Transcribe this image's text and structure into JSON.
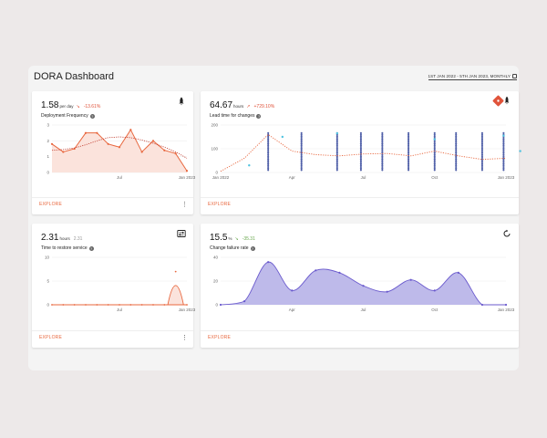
{
  "dashboard": {
    "title": "DORA Dashboard",
    "date_range": "1ST JAN 2022 - 5TH JAN 2023, MONTHLY"
  },
  "cards": {
    "deployment": {
      "value": "1.58",
      "unit": "per day",
      "delta": "-13.61%",
      "label": "Deployment Frequency",
      "explore": "EXPLORE",
      "icon": "rocket-icon"
    },
    "leadtime": {
      "value": "64.67",
      "unit": "hours",
      "delta": "+729.10%",
      "label": "Lead time for changes",
      "explore": "EXPLORE",
      "icon": "git-rocket-icon"
    },
    "restore": {
      "value": "2.31",
      "unit": "hours",
      "delta": "2.31",
      "label": "Time to restore service",
      "explore": "EXPLORE",
      "icon": "restore-icon"
    },
    "failure": {
      "value": "15.5",
      "unit": "%",
      "delta": "-35.31",
      "label": "Change failure rate",
      "explore": "EXPLORE",
      "icon": "refresh-icon"
    }
  },
  "colors": {
    "accent": "#e8673e",
    "purple": "#6a5acd",
    "purple_fill": "#b3aee6",
    "scatter": "#4f5fa8",
    "cyan": "#4fc3e0"
  },
  "chart_data": [
    {
      "type": "line",
      "name": "deployment-frequency",
      "ylim": [
        0,
        3
      ],
      "yticks": [
        "0",
        "1",
        "2",
        "3"
      ],
      "xticks": [
        {
          "label": "Jul",
          "x": 6
        },
        {
          "label": "Jan 2023",
          "x": 12
        }
      ],
      "x": [
        0,
        1,
        2,
        3,
        4,
        5,
        6,
        7,
        8,
        9,
        10,
        11,
        12
      ],
      "series": [
        {
          "values": [
            1.8,
            1.3,
            1.5,
            2.5,
            2.5,
            1.8,
            1.6,
            2.7,
            1.3,
            2.0,
            1.4,
            1.2,
            0.1
          ]
        },
        {
          "values": [
            1.4,
            1.45,
            1.55,
            1.75,
            2.0,
            2.2,
            2.25,
            2.2,
            2.05,
            1.85,
            1.6,
            1.3,
            0.9
          ]
        }
      ]
    },
    {
      "type": "scatter",
      "name": "lead-time",
      "ylim": [
        0,
        200
      ],
      "yticks": [
        "0",
        "100",
        "200"
      ],
      "xticks": [
        {
          "label": "Jan 2022",
          "x": 0
        },
        {
          "label": "Apr",
          "x": 3
        },
        {
          "label": "Jul",
          "x": 6
        },
        {
          "label": "Oct",
          "x": 9
        },
        {
          "label": "Jan 2023",
          "x": 12
        }
      ],
      "trend": [
        {
          "x": 0,
          "y": 5
        },
        {
          "x": 1,
          "y": 60
        },
        {
          "x": 2,
          "y": 160
        },
        {
          "x": 3,
          "y": 90
        },
        {
          "x": 4,
          "y": 75
        },
        {
          "x": 5,
          "y": 70
        },
        {
          "x": 6,
          "y": 78
        },
        {
          "x": 7,
          "y": 80
        },
        {
          "x": 8,
          "y": 70
        },
        {
          "x": 9,
          "y": 90
        },
        {
          "x": 10,
          "y": 70
        },
        {
          "x": 11,
          "y": 55
        },
        {
          "x": 12,
          "y": 60
        }
      ],
      "columns": [
        2,
        3.4,
        4.9,
        5.9,
        6.8,
        7.9,
        9.0,
        9.9,
        11.0,
        11.9
      ],
      "column_range": [
        10,
        170
      ],
      "cyan_points": [
        {
          "x": 1.2,
          "y": 30
        },
        {
          "x": 2.6,
          "y": 150
        },
        {
          "x": 4.9,
          "y": 165
        },
        {
          "x": 9.0,
          "y": 140
        },
        {
          "x": 11.9,
          "y": 155
        },
        {
          "x": 12.6,
          "y": 90
        }
      ]
    },
    {
      "type": "line",
      "name": "time-to-restore",
      "ylim": [
        0,
        10
      ],
      "yticks": [
        "0",
        "5",
        "10"
      ],
      "xticks": [
        {
          "label": "Jul",
          "x": 6
        },
        {
          "label": "Jan 2023",
          "x": 12
        }
      ],
      "x": [
        0,
        1,
        2,
        3,
        4,
        5,
        6,
        7,
        8,
        9,
        10,
        11,
        12
      ],
      "series": [
        {
          "values": [
            0,
            0,
            0,
            0,
            0,
            0,
            0,
            0,
            0,
            0,
            0,
            7,
            0
          ]
        }
      ]
    },
    {
      "type": "area",
      "name": "change-failure-rate",
      "ylim": [
        0,
        40
      ],
      "yticks": [
        "0",
        "20",
        "40"
      ],
      "xticks": [
        {
          "label": "Apr",
          "x": 3
        },
        {
          "label": "Jul",
          "x": 6
        },
        {
          "label": "Oct",
          "x": 9
        },
        {
          "label": "Jan 2023",
          "x": 12
        }
      ],
      "x": [
        0,
        1,
        2,
        3,
        4,
        5,
        6,
        7,
        8,
        9,
        10,
        11,
        12
      ],
      "series": [
        {
          "values": [
            0,
            3,
            36,
            12,
            29,
            27,
            16,
            11,
            21,
            12,
            27,
            0,
            0
          ]
        }
      ]
    }
  ]
}
